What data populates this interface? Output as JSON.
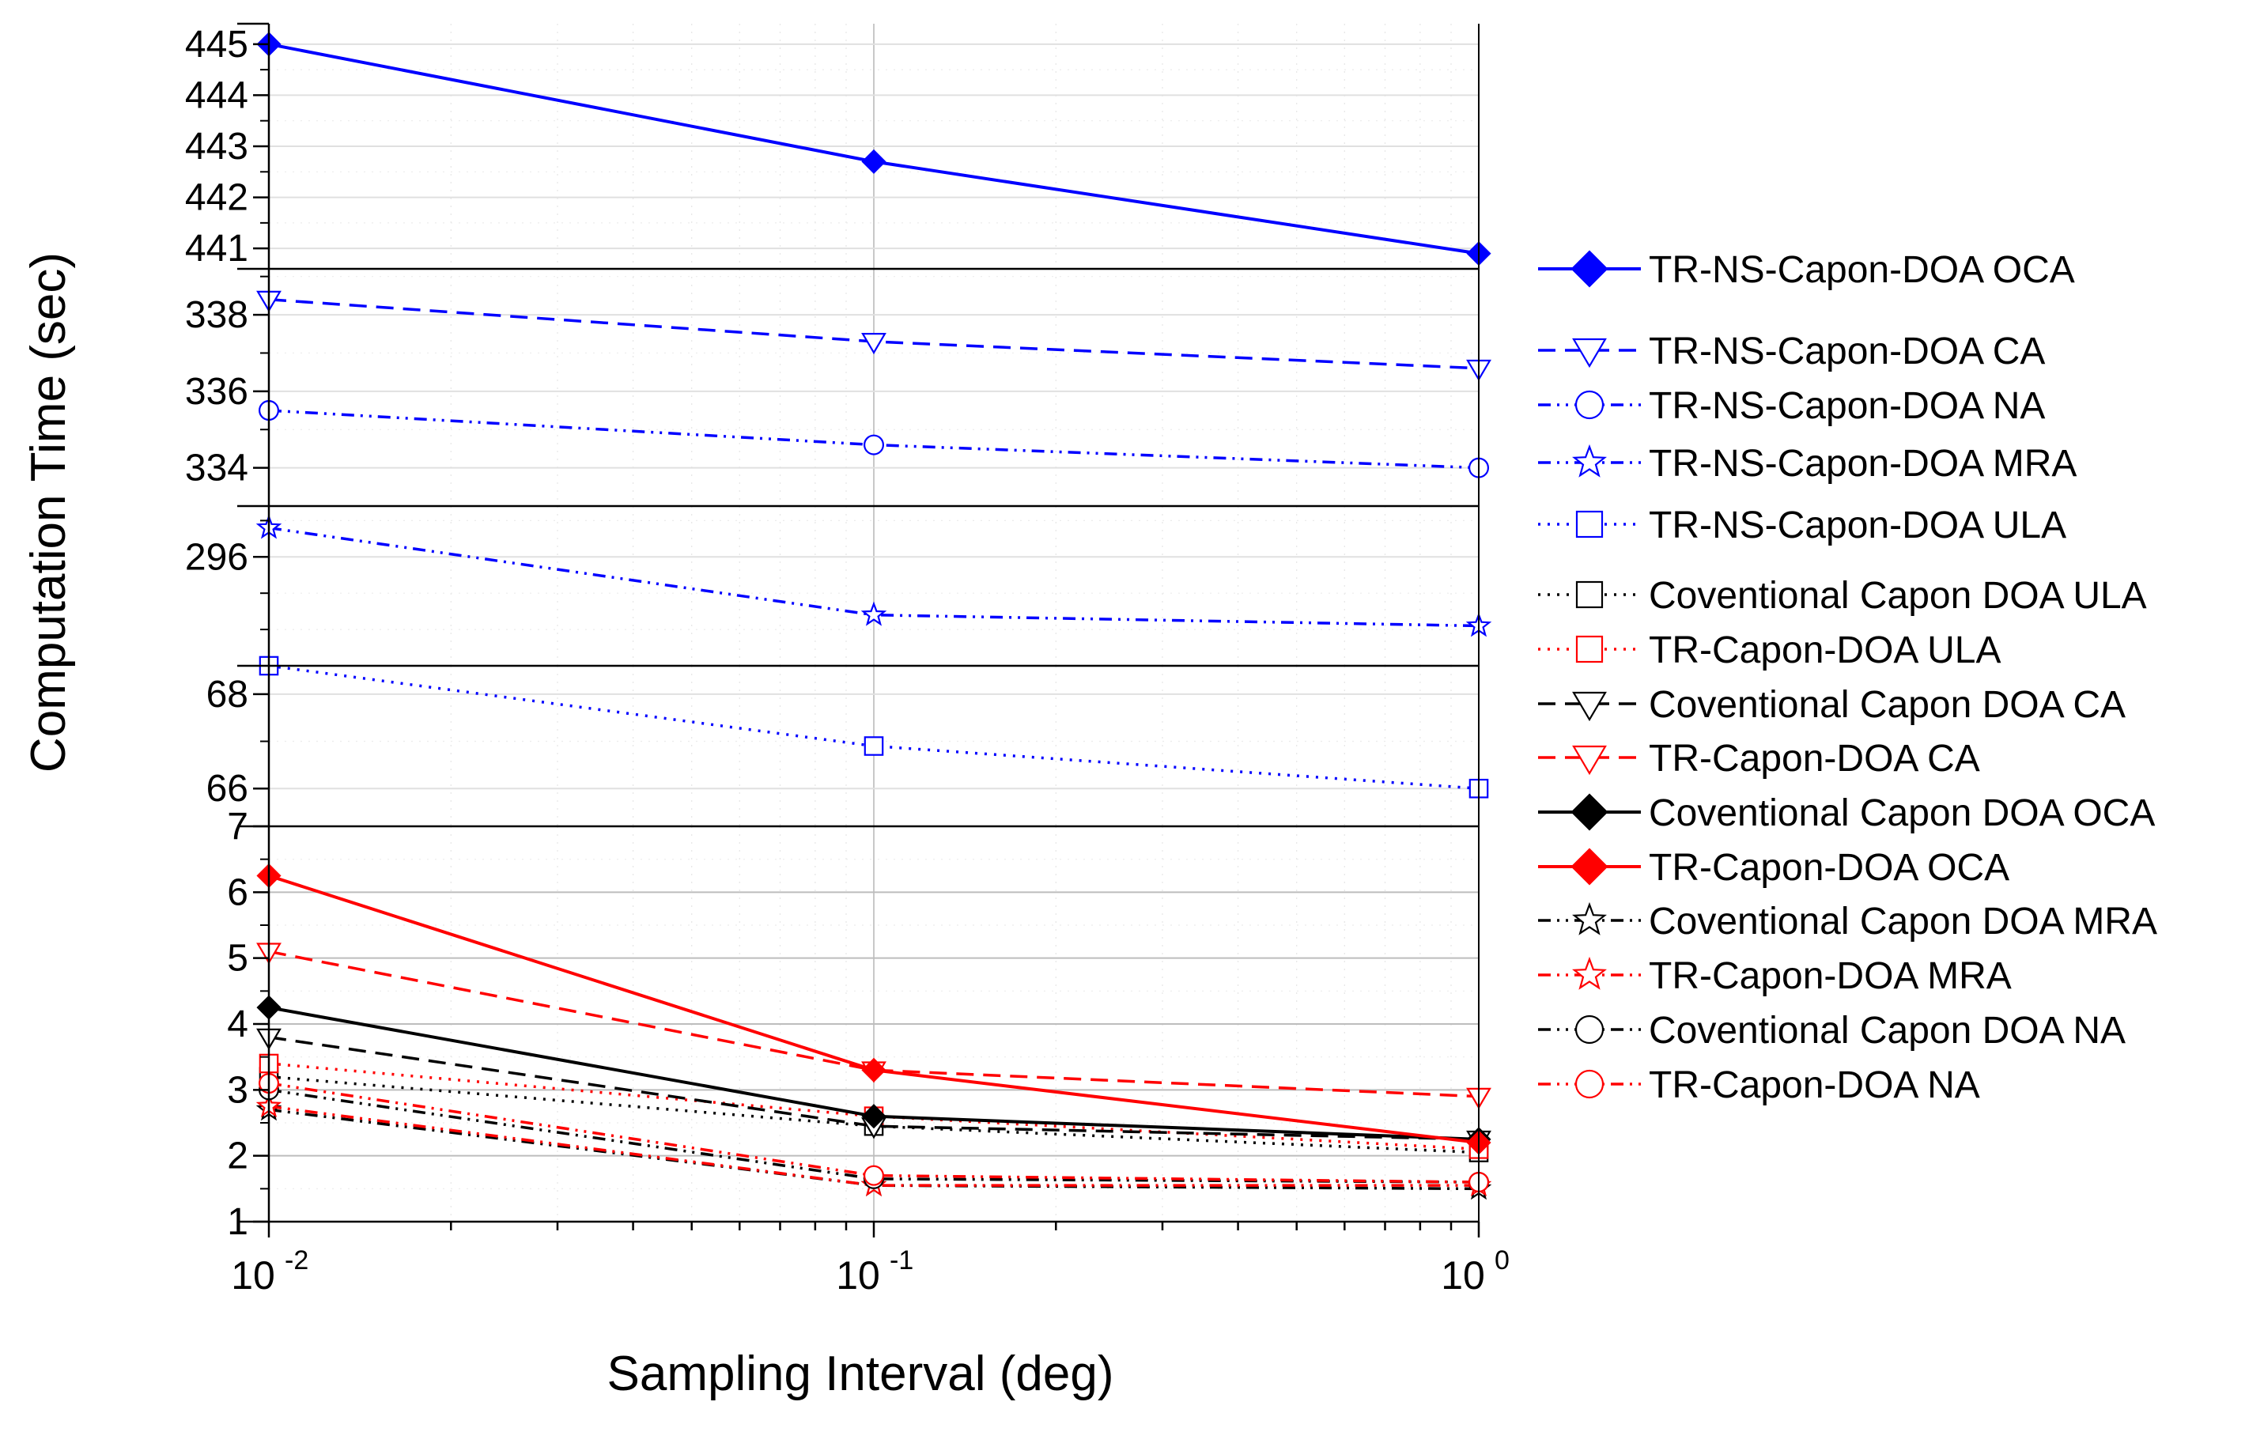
{
  "chart_data": {
    "type": "line",
    "xlabel": "Sampling Interval (deg)",
    "ylabel": "Computation Time (sec)",
    "xscale": "log",
    "xlim": [
      0.01,
      1
    ],
    "x": [
      0.01,
      0.1,
      1
    ],
    "xtick_labels": [
      {
        "base": "10",
        "exp": "-2"
      },
      {
        "base": "10",
        "exp": "-1"
      },
      {
        "base": "10",
        "exp": "0"
      }
    ],
    "grid": true,
    "legend_placement": "right",
    "panels": [
      {
        "key": "p1",
        "ylim": [
          440.6,
          445.4
        ],
        "ticks": [
          441,
          442,
          443,
          444,
          445
        ]
      },
      {
        "key": "p2",
        "ylim": [
          333.0,
          339.2
        ],
        "ticks": [
          334,
          336,
          338
        ]
      },
      {
        "key": "p3",
        "ylim": [
          293.0,
          297.4
        ],
        "ticks": [
          296
        ]
      },
      {
        "key": "p4",
        "ylim": [
          65.2,
          68.6
        ],
        "ticks": [
          66,
          68
        ]
      },
      {
        "key": "p5",
        "ylim": [
          1,
          7
        ],
        "ticks": [
          1,
          2,
          3,
          4,
          5,
          6,
          7
        ]
      }
    ],
    "series": [
      {
        "name": "TR-NS-Capon-DOA OCA",
        "panel": "p1",
        "color": "#0000ff",
        "marker": "diamond",
        "filled": true,
        "dash": "solid",
        "values": [
          445.0,
          442.7,
          440.9
        ]
      },
      {
        "name": "TR-NS-Capon-DOA CA",
        "panel": "p2",
        "color": "#0000ff",
        "marker": "triangle-down",
        "filled": false,
        "dash": "dash",
        "values": [
          338.4,
          337.3,
          336.6
        ]
      },
      {
        "name": "TR-NS-Capon-DOA NA",
        "panel": "p2",
        "color": "#0000ff",
        "marker": "circle",
        "filled": false,
        "dash": "dashdotdot",
        "values": [
          335.5,
          334.6,
          334.0
        ]
      },
      {
        "name": "TR-NS-Capon-DOA MRA",
        "panel": "p3",
        "color": "#0000ff",
        "marker": "star",
        "filled": false,
        "dash": "dashdotdot",
        "values": [
          296.8,
          294.4,
          294.1
        ]
      },
      {
        "name": "TR-NS-Capon-DOA ULA",
        "panel": "p4",
        "color": "#0000ff",
        "marker": "square",
        "filled": false,
        "dash": "dotted",
        "values": [
          68.6,
          66.9,
          66.0
        ]
      },
      {
        "name": "Coventional Capon DOA ULA",
        "panel": "p5",
        "color": "#000000",
        "marker": "square",
        "filled": false,
        "dash": "dotted",
        "values": [
          3.2,
          2.45,
          2.05
        ]
      },
      {
        "name": "TR-Capon-DOA ULA",
        "panel": "p5",
        "color": "#ff0000",
        "marker": "square",
        "filled": false,
        "dash": "dotted",
        "values": [
          3.4,
          2.6,
          2.1
        ]
      },
      {
        "name": "Coventional Capon DOA CA",
        "panel": "p5",
        "color": "#000000",
        "marker": "triangle-down",
        "filled": false,
        "dash": "dash",
        "values": [
          3.8,
          2.45,
          2.25
        ]
      },
      {
        "name": "TR-Capon-DOA CA",
        "panel": "p5",
        "color": "#ff0000",
        "marker": "triangle-down",
        "filled": false,
        "dash": "dash",
        "values": [
          5.1,
          3.3,
          2.9
        ]
      },
      {
        "name": "Coventional Capon DOA OCA",
        "panel": "p5",
        "color": "#000000",
        "marker": "diamond",
        "filled": true,
        "dash": "solid",
        "values": [
          4.25,
          2.6,
          2.25
        ]
      },
      {
        "name": "TR-Capon-DOA OCA",
        "panel": "p5",
        "color": "#ff0000",
        "marker": "diamond",
        "filled": true,
        "dash": "solid",
        "values": [
          6.25,
          3.3,
          2.2
        ]
      },
      {
        "name": "Coventional Capon DOA MRA",
        "panel": "p5",
        "color": "#000000",
        "marker": "star",
        "filled": false,
        "dash": "dashdotdot",
        "values": [
          2.7,
          1.55,
          1.5
        ]
      },
      {
        "name": "TR-Capon-DOA MRA",
        "panel": "p5",
        "color": "#ff0000",
        "marker": "star",
        "filled": false,
        "dash": "dashdotdot",
        "values": [
          2.75,
          1.55,
          1.55
        ]
      },
      {
        "name": "Coventional Capon DOA NA",
        "panel": "p5",
        "color": "#000000",
        "marker": "circle",
        "filled": false,
        "dash": "dashdotdot",
        "values": [
          3.0,
          1.65,
          1.6
        ]
      },
      {
        "name": "TR-Capon-DOA NA",
        "panel": "p5",
        "color": "#ff0000",
        "marker": "circle",
        "filled": false,
        "dash": "dashdotdot",
        "values": [
          3.1,
          1.7,
          1.6
        ]
      }
    ]
  }
}
